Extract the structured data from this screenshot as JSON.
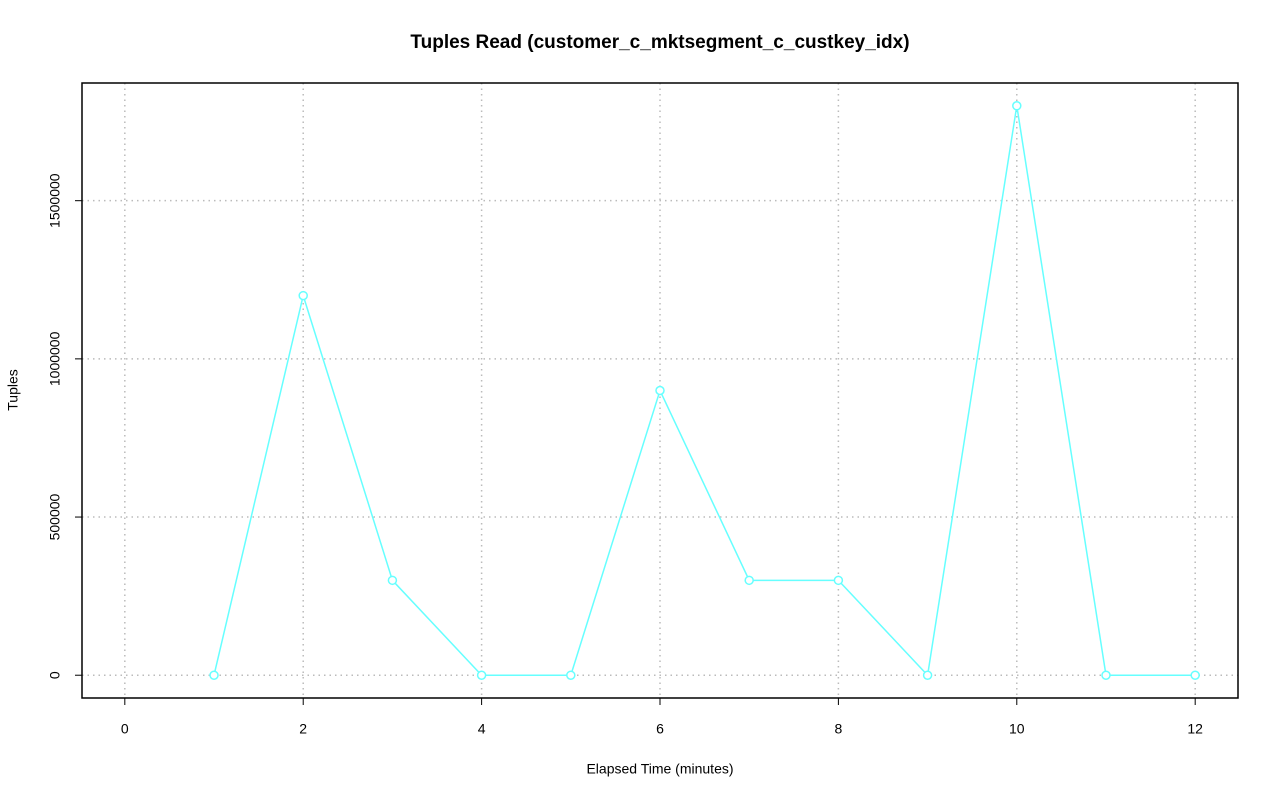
{
  "chart_data": {
    "type": "line",
    "title": "Tuples Read (customer_c_mktsegment_c_custkey_idx)",
    "x_label": "Elapsed Time (minutes)",
    "y_label": "Tuples",
    "series": [
      {
        "color": "#66ffff",
        "x": [
          1,
          2,
          3,
          4,
          5,
          6,
          7,
          8,
          9,
          10,
          11,
          12
        ],
        "values": [
          0,
          1200000,
          300000,
          0,
          0,
          900000,
          300000,
          300000,
          0,
          1800000,
          0,
          0
        ]
      }
    ],
    "xlim": [
      -0.48,
      12.48
    ],
    "ylim": [
      -72000,
      1872000
    ],
    "xticks": [
      0,
      2,
      4,
      6,
      8,
      10,
      12
    ],
    "yticks": [
      0,
      500000,
      1000000,
      1500000
    ],
    "grid": true
  }
}
